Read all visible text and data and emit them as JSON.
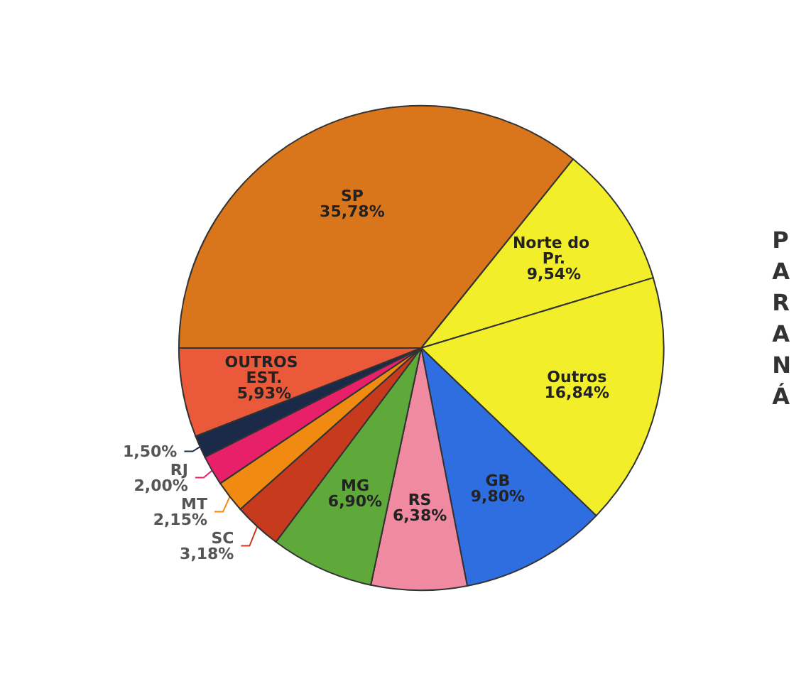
{
  "chart_data": {
    "type": "pie",
    "categories": [
      "SP",
      "Norte do Pr.",
      "Outros",
      "GB",
      "RS",
      "MG",
      "SC",
      "MT",
      "RJ",
      null,
      "OUTROS EST."
    ],
    "values": [
      35.78,
      9.54,
      16.84,
      9.8,
      6.38,
      6.9,
      3.18,
      2.15,
      2.0,
      1.5,
      5.93
    ],
    "value_labels": [
      "35,78%",
      "9,54%",
      "16,84%",
      "9,80%",
      "6,38%",
      "6,90%",
      "3,18%",
      "2,15%",
      "2,00%",
      "1,50%",
      "5,93%"
    ],
    "colors": [
      "#d9761c",
      "#f2ee2a",
      "#f2ee2a",
      "#2f6ee0",
      "#f08aa0",
      "#5fa83a",
      "#c83a1e",
      "#f08a10",
      "#e8206a",
      "#1c2a4a",
      "#ea5a3a"
    ],
    "annotations": [
      "PARANÁ"
    ],
    "legend": false
  }
}
